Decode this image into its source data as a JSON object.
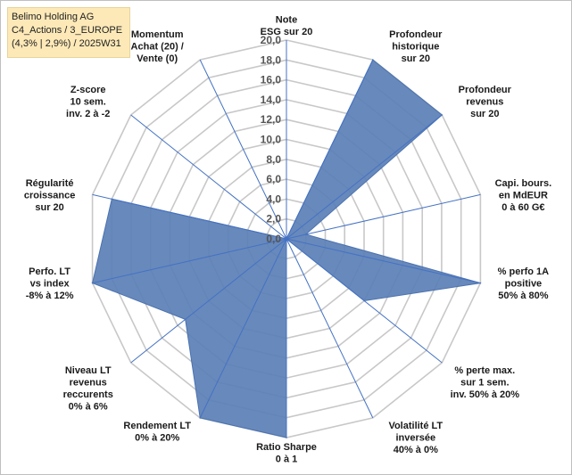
{
  "title_box": {
    "line1": "Belimo Holding AG",
    "line2": "C4_Actions / 3_EUROPE",
    "line3": "(4,3% | 2,9%) / 2025W31"
  },
  "chart_data": {
    "type": "radar",
    "rmin": 0,
    "rmax": 20,
    "tick_step": 2,
    "tick_labels": [
      "0,0",
      "2,0",
      "4,0",
      "6,0",
      "8,0",
      "10,0",
      "12,0",
      "14,0",
      "16,0",
      "18,0",
      "20,0"
    ],
    "grid": true,
    "colors": {
      "fill": "#5b7fb5",
      "stroke": "#4a72b0",
      "grid": "#c8c8c8",
      "spoke": "#4472c4"
    },
    "axes": [
      {
        "lines": [
          "Note",
          "ESG sur 20"
        ],
        "value": 0
      },
      {
        "lines": [
          "Profondeur",
          "historique",
          "sur 20"
        ],
        "value": 20
      },
      {
        "lines": [
          "Profondeur",
          "revenus",
          "sur 20"
        ],
        "value": 20
      },
      {
        "lines": [
          "Capi. bours.",
          "en MdEUR",
          "0 à 60 G€"
        ],
        "value": 2
      },
      {
        "lines": [
          "% perfo 1A",
          "positive",
          "50% à 80%"
        ],
        "value": 20
      },
      {
        "lines": [
          "% perte max.",
          "sur 1 sem.",
          "inv. 50% à 20%"
        ],
        "value": 10
      },
      {
        "lines": [
          "Volatilité LT",
          "inversée",
          "40% à 0%"
        ],
        "value": 0
      },
      {
        "lines": [
          "Ratio Sharpe",
          "0 à 1"
        ],
        "value": 20
      },
      {
        "lines": [
          "Rendement LT",
          "0% à 20%"
        ],
        "value": 20
      },
      {
        "lines": [
          "Niveau LT",
          "revenus",
          "reccurents",
          "0% à 6%"
        ],
        "value": 13
      },
      {
        "lines": [
          "Perfo. LT",
          "vs index",
          "-8% à 12%"
        ],
        "value": 20
      },
      {
        "lines": [
          "Régularité",
          "croissance",
          "sur 20"
        ],
        "value": 18
      },
      {
        "lines": [
          "Z-score",
          "10 sem.",
          "inv. 2 à -2"
        ],
        "value": 0
      },
      {
        "lines": [
          "Momentum",
          "Achat (20) /",
          "Vente (0)"
        ],
        "value": 0
      }
    ]
  }
}
